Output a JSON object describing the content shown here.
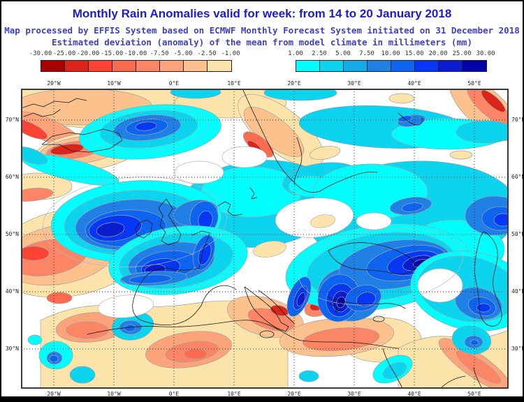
{
  "header": {
    "title": "Monthly Rain Anomalies valid for week: from 14 to 20 January 2018",
    "subtitle1": "Map processed by EFFIS System based on ECMWF Monthly Forecast System initiated on 31 December 2018",
    "subtitle2": "Estimated deviation (anomaly) of the mean from model climate in millimeters (mm)",
    "title_color": "#1b1bd6",
    "subtitle_color": "#4040c0"
  },
  "legend_negative": {
    "tick_labels": [
      "-30.00",
      "-25.00",
      "-20.00",
      "-15.00",
      "-10.00",
      "-7.50",
      "-5.00",
      "-2.50",
      "-1.00"
    ],
    "cell_colors": [
      "#a80000",
      "#dd2418",
      "#fa4334",
      "#f96a4e",
      "#fb8564",
      "#fca379",
      "#fdc18e",
      "#fce3a9"
    ]
  },
  "legend_positive": {
    "tick_labels": [
      "1.00",
      "2.50",
      "5.00",
      "7.50",
      "10.00",
      "15.00",
      "20.00",
      "25.00",
      "30.00"
    ],
    "cell_colors": [
      "#00feff",
      "#0cd4ef",
      "#14abe9",
      "#2180e5",
      "#0d64f1",
      "#0637f5",
      "#0a1bd2",
      "#0103a8"
    ]
  },
  "map": {
    "units": "mm",
    "longitude_ticks": [
      "20°W",
      "10°W",
      "0°E",
      "10°E",
      "20°E",
      "30°E",
      "40°E",
      "50°E"
    ],
    "latitude_ticks": [
      "70°N",
      "60°N",
      "50°N",
      "40°N",
      "30°N"
    ]
  }
}
